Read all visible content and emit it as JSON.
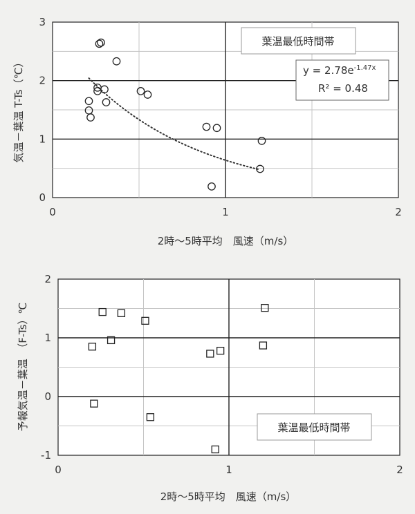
{
  "chart_data": [
    {
      "type": "scatter",
      "title": "",
      "xlabel": "2時～5時平均　風速（m/s）",
      "ylabel": "気温－葉温 T-Ts（℃）",
      "xlim": [
        0,
        2
      ],
      "ylim": [
        0,
        3
      ],
      "x_ticks": [
        "0",
        "1",
        "2"
      ],
      "y_ticks": [
        "0",
        "1",
        "2",
        "3"
      ],
      "grid": true,
      "marker": "circle",
      "annotation": "葉温最低時間帯",
      "trendline": {
        "type": "exponential",
        "a": 2.78,
        "b": -1.47,
        "equation_main": "y = 2.78e",
        "equation_exp": "-1.47x",
        "r2_text": "R² = 0.48",
        "x_range": [
          0.21,
          1.2
        ]
      },
      "points": [
        {
          "x": 0.27,
          "y": 2.63
        },
        {
          "x": 0.28,
          "y": 2.65
        },
        {
          "x": 0.37,
          "y": 2.33
        },
        {
          "x": 0.26,
          "y": 1.88
        },
        {
          "x": 0.26,
          "y": 1.82
        },
        {
          "x": 0.3,
          "y": 1.85
        },
        {
          "x": 0.51,
          "y": 1.82
        },
        {
          "x": 0.55,
          "y": 1.76
        },
        {
          "x": 0.21,
          "y": 1.65
        },
        {
          "x": 0.31,
          "y": 1.63
        },
        {
          "x": 0.21,
          "y": 1.49
        },
        {
          "x": 0.22,
          "y": 1.37
        },
        {
          "x": 0.89,
          "y": 1.21
        },
        {
          "x": 0.95,
          "y": 1.19
        },
        {
          "x": 1.21,
          "y": 0.97
        },
        {
          "x": 1.2,
          "y": 0.49
        },
        {
          "x": 0.92,
          "y": 0.19
        }
      ]
    },
    {
      "type": "scatter",
      "title": "",
      "xlabel": "2時～5時平均　風速（m/s）",
      "ylabel": "予報気温－葉温　（F-Ts）℃",
      "xlim": [
        0,
        2
      ],
      "ylim": [
        -1,
        2
      ],
      "x_ticks": [
        "0",
        "1",
        "2"
      ],
      "y_ticks": [
        "2",
        "1",
        "0",
        "-1"
      ],
      "grid": true,
      "marker": "square",
      "annotation": "葉温最低時間帯",
      "points": [
        {
          "x": 0.26,
          "y": 1.44
        },
        {
          "x": 0.37,
          "y": 1.42
        },
        {
          "x": 0.51,
          "y": 1.29
        },
        {
          "x": 1.21,
          "y": 1.51
        },
        {
          "x": 0.2,
          "y": 0.85
        },
        {
          "x": 0.31,
          "y": 0.96
        },
        {
          "x": 1.2,
          "y": 0.87
        },
        {
          "x": 0.89,
          "y": 0.73
        },
        {
          "x": 0.95,
          "y": 0.78
        },
        {
          "x": 0.21,
          "y": -0.12
        },
        {
          "x": 0.54,
          "y": -0.35
        },
        {
          "x": 0.92,
          "y": -0.9
        }
      ]
    }
  ]
}
